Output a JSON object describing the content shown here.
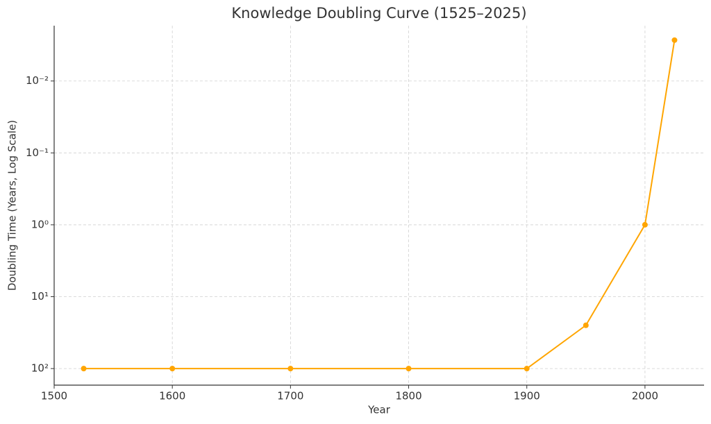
{
  "chart_data": {
    "type": "line",
    "title": "Knowledge Doubling Curve (1525–2025)",
    "x_label": "Year",
    "y_label": "Doubling Time (Years, Log Scale)",
    "x": [
      1525,
      1600,
      1700,
      1800,
      1900,
      1950,
      2000,
      2025
    ],
    "series": [
      {
        "name": "Doubling Time",
        "color": "#ffa500",
        "values": [
          100,
          100,
          100,
          100,
          100,
          25,
          1,
          0.0027
        ]
      }
    ],
    "xlim": [
      1500,
      2050
    ],
    "xticks": [
      1500,
      1600,
      1700,
      1800,
      1900,
      2000
    ],
    "ylim": [
      0.0017,
      170
    ],
    "y_scale": "log",
    "y_inverted": true,
    "yticks": [
      {
        "value": 100,
        "label": "10²"
      },
      {
        "value": 10,
        "label": "10¹"
      },
      {
        "value": 1,
        "label": "10⁰"
      },
      {
        "value": 0.1,
        "label": "10⁻¹"
      },
      {
        "value": 0.01,
        "label": "10⁻²"
      }
    ],
    "grid": true
  }
}
